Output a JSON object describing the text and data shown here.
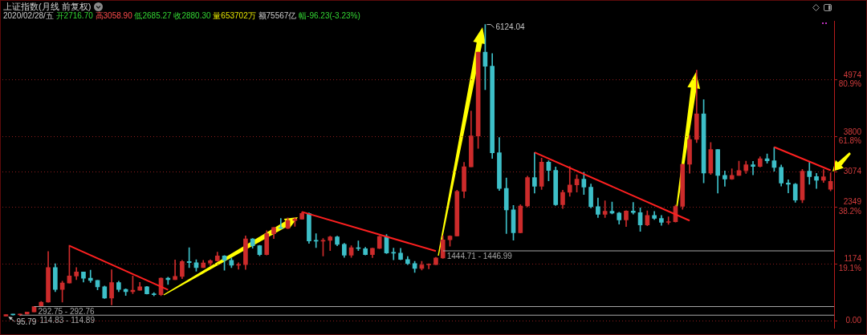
{
  "chart_data": {
    "type": "candlestick",
    "title": "上证指数(月线 前复权)",
    "subtitle": "2020/02/28/五 开2716.70 高3058.90 低2685.27 收2880.30 量653702万 额75567亿 幅-96.23(-3.23%)",
    "categories": [
      null,
      null,
      null,
      null,
      null,
      null,
      null,
      null,
      null,
      null,
      null,
      null,
      null,
      null,
      null,
      null,
      null,
      null,
      null,
      null,
      null,
      null,
      null,
      null,
      null,
      null,
      null,
      null,
      null,
      null,
      null,
      null,
      null,
      null,
      null,
      null,
      null,
      null,
      null,
      null,
      null,
      null,
      null,
      null,
      null,
      null,
      null,
      null,
      null,
      null,
      null,
      null,
      null,
      null,
      null,
      null,
      null,
      null,
      null,
      null,
      null,
      null,
      null,
      null,
      null,
      null,
      null,
      null,
      null,
      null,
      null,
      null,
      null,
      null,
      null,
      null,
      null,
      null,
      null,
      null,
      null,
      null,
      null,
      null,
      null,
      null,
      null,
      null,
      null,
      null,
      null,
      null,
      null,
      null,
      null,
      null,
      null,
      null,
      null,
      null,
      null,
      null,
      null,
      null,
      null,
      null,
      null,
      null,
      null,
      null,
      null,
      null,
      null,
      null,
      null,
      null,
      null,
      null
    ],
    "ohlc": [
      [
        96,
        128,
        95.79,
        128
      ],
      [
        128,
        135,
        118,
        120
      ],
      [
        120,
        138,
        105,
        138
      ],
      [
        138,
        181,
        138,
        181
      ],
      [
        181,
        293,
        181,
        293
      ],
      [
        294,
        400,
        294,
        385
      ],
      [
        385,
        1429,
        380,
        1100
      ],
      [
        1100,
        1180,
        600,
        645
      ],
      [
        645,
        817,
        387,
        780
      ],
      [
        780,
        1559,
        780,
        926
      ],
      [
        926,
        1100,
        850,
        1008
      ],
      [
        1008,
        1010,
        800,
        880
      ],
      [
        880,
        1044,
        790,
        834
      ],
      [
        834,
        835,
        640,
        700
      ],
      [
        700,
        720,
        460,
        467
      ],
      [
        467,
        1053,
        326,
        790
      ],
      [
        790,
        820,
        600,
        648
      ],
      [
        648,
        660,
        524,
        600
      ],
      [
        600,
        926,
        560,
        630
      ],
      [
        630,
        793,
        630,
        700
      ],
      [
        700,
        710,
        550,
        555
      ],
      [
        555,
        580,
        513,
        540
      ],
      [
        540,
        890,
        520,
        880
      ],
      [
        880,
        900,
        750,
        850
      ],
      [
        850,
        1259,
        850,
        917
      ],
      [
        917,
        1250,
        870,
        1225
      ],
      [
        1225,
        1510,
        1100,
        1200
      ],
      [
        1200,
        1260,
        1025,
        1100
      ],
      [
        1100,
        1250,
        1100,
        1194
      ],
      [
        1194,
        1260,
        1140,
        1240
      ],
      [
        1240,
        1420,
        1230,
        1340
      ],
      [
        1340,
        1350,
        1043,
        1250
      ],
      [
        1250,
        1300,
        1100,
        1147
      ],
      [
        1147,
        1200,
        1065,
        1160
      ],
      [
        1160,
        1756,
        1060,
        1690
      ],
      [
        1690,
        1700,
        1500,
        1550
      ],
      [
        1550,
        1560,
        1341,
        1367
      ],
      [
        1367,
        1860,
        1361,
        1800
      ],
      [
        1800,
        1930,
        1700,
        1928
      ],
      [
        1928,
        2115,
        1900,
        1910
      ],
      [
        1910,
        2125,
        1900,
        2073
      ],
      [
        2073,
        2130,
        1950,
        2100
      ],
      [
        2100,
        2245,
        2100,
        2218
      ],
      [
        2218,
        2230,
        1600,
        1650
      ],
      [
        1650,
        1800,
        1514,
        1646
      ],
      [
        1646,
        1700,
        1339,
        1660
      ],
      [
        1660,
        1748,
        1450,
        1732
      ],
      [
        1732,
        1748,
        1550,
        1580
      ],
      [
        1580,
        1600,
        1311,
        1357
      ],
      [
        1357,
        1550,
        1311,
        1510
      ],
      [
        1510,
        1649,
        1450,
        1490
      ],
      [
        1490,
        1520,
        1360,
        1367
      ],
      [
        1367,
        1500,
        1307,
        1497
      ],
      [
        1497,
        1750,
        1490,
        1740
      ],
      [
        1740,
        1783,
        1390,
        1400
      ],
      [
        1400,
        1500,
        1259,
        1396
      ],
      [
        1396,
        1497,
        1260,
        1266
      ],
      [
        1266,
        1328,
        1160,
        1181
      ],
      [
        1181,
        1230,
        998,
        1080
      ],
      [
        1080,
        1230,
        1050,
        1155
      ],
      [
        1155,
        1180,
        1074,
        1161
      ],
      [
        1161,
        1310,
        1160,
        1299
      ],
      [
        1299,
        1757,
        1290,
        1672
      ],
      [
        1672,
        1758,
        1541,
        1752
      ],
      [
        1752,
        2698,
        1750,
        2675
      ],
      [
        2675,
        3274,
        2541,
        3183
      ],
      [
        3183,
        4335,
        3183,
        3820
      ],
      [
        3820,
        5552,
        3563,
        5552
      ],
      [
        5552,
        6124.04,
        4778,
        5261
      ],
      [
        5261,
        5522,
        3357,
        3472
      ],
      [
        3472,
        3786,
        2693,
        2736
      ],
      [
        2736,
        2952,
        1802,
        2293
      ],
      [
        2293,
        2382,
        1665,
        1820
      ],
      [
        1820,
        2402,
        1814,
        2373
      ],
      [
        2373,
        2990,
        2353,
        2959
      ],
      [
        2959,
        3478,
        2639,
        2779
      ],
      [
        2779,
        3361,
        2712,
        3277
      ],
      [
        3277,
        3306,
        2890,
        3109
      ],
      [
        3109,
        3181,
        2382,
        2398
      ],
      [
        2398,
        2700,
        2319,
        2655
      ],
      [
        2655,
        3186,
        2573,
        2808
      ],
      [
        2808,
        3017,
        2661,
        2928
      ],
      [
        2928,
        3067,
        2610,
        2762
      ],
      [
        2762,
        2827,
        2331,
        2359
      ],
      [
        2359,
        2536,
        2134,
        2199
      ],
      [
        2199,
        2478,
        2132,
        2262
      ],
      [
        2262,
        2453,
        2210,
        2225
      ],
      [
        2225,
        2244,
        1999,
        2086
      ],
      [
        2086,
        2276,
        1949,
        2269
      ],
      [
        2269,
        2444,
        2205,
        2236
      ],
      [
        2236,
        2334,
        1849,
        1979
      ],
      [
        1979,
        2270,
        1963,
        2175
      ],
      [
        2175,
        2259,
        2093,
        2116
      ],
      [
        2116,
        2177,
        1974,
        2033
      ],
      [
        2033,
        2146,
        1991,
        2048
      ],
      [
        2048,
        2392,
        2040,
        2364
      ],
      [
        2364,
        3239,
        2304,
        3234
      ],
      [
        3234,
        3835,
        3049,
        3748
      ],
      [
        3748,
        5178,
        3684,
        4277
      ],
      [
        4277,
        4572,
        2850,
        3053
      ],
      [
        3053,
        3684,
        3023,
        3539
      ],
      [
        3539,
        3539,
        2638,
        3003
      ],
      [
        3003,
        3097,
        2781,
        2930
      ],
      [
        2930,
        3140,
        2920,
        3005
      ],
      [
        3005,
        3301,
        3003,
        3104
      ],
      [
        3104,
        3301,
        3044,
        3223
      ],
      [
        3223,
        3295,
        3016,
        3192
      ],
      [
        3192,
        3391,
        3178,
        3349
      ],
      [
        3349,
        3450,
        3255,
        3307
      ],
      [
        3307,
        3587,
        3091,
        3169
      ],
      [
        3169,
        3220,
        2782,
        2847
      ],
      [
        2847,
        2915,
        2644,
        2821
      ],
      [
        2821,
        2838,
        2449,
        2494
      ],
      [
        2497,
        3129,
        2440,
        3091
      ],
      [
        3091,
        3288,
        2822,
        2979
      ],
      [
        2979,
        3048,
        2733,
        2905
      ],
      [
        2905,
        3127,
        2857,
        2977
      ],
      [
        2716.7,
        3058.9,
        2685.27,
        2880.3
      ]
    ],
    "series": [
      {
        "type": "line",
        "color": "#ff2020",
        "values": [
          null,
          null,
          null,
          null,
          null,
          null,
          null,
          null,
          null,
          1550,
          null,
          null,
          null,
          null,
          null,
          null,
          null,
          null,
          null,
          null,
          null,
          null,
          null,
          640,
          null,
          null,
          null,
          null,
          null,
          null,
          null,
          null,
          null,
          null,
          null,
          null,
          null,
          null,
          null,
          null,
          null,
          null,
          null,
          null,
          null,
          null,
          null,
          null,
          null,
          null,
          null,
          null,
          null,
          null,
          null,
          null,
          null,
          null,
          null,
          null,
          null,
          null,
          null,
          null,
          null,
          null,
          null,
          null,
          null,
          null,
          null,
          null,
          null,
          null,
          null,
          null,
          null,
          null,
          null,
          null,
          null,
          null,
          null,
          null,
          null,
          null,
          null,
          null,
          null,
          null,
          null,
          null,
          null,
          null,
          null,
          null,
          null,
          null,
          null,
          null,
          null,
          null,
          null,
          null,
          null,
          null,
          null,
          null,
          null,
          null,
          null,
          null,
          null,
          null,
          null,
          null,
          null,
          null
        ]
      },
      {
        "type": "line",
        "color": "#ff2020",
        "values": [
          null,
          null,
          null,
          null,
          null,
          null,
          null,
          null,
          null,
          null,
          null,
          null,
          null,
          null,
          null,
          null,
          null,
          null,
          null,
          null,
          null,
          null,
          null,
          null,
          null,
          null,
          null,
          null,
          null,
          null,
          null,
          null,
          null,
          null,
          null,
          null,
          null,
          null,
          null,
          null,
          null,
          null,
          2250,
          null,
          null,
          null,
          null,
          null,
          null,
          null,
          null,
          null,
          null,
          null,
          null,
          null,
          null,
          null,
          null,
          null,
          null,
          1440,
          null,
          null,
          null,
          null,
          null,
          null,
          null,
          null,
          null,
          null,
          null,
          null,
          null,
          null,
          null,
          null,
          null,
          null,
          null,
          null,
          null,
          null,
          null,
          null,
          null,
          null,
          null,
          null,
          null,
          null,
          null,
          null,
          null,
          null,
          null,
          null,
          null,
          null,
          null,
          null,
          null,
          null,
          null,
          null,
          null,
          null,
          null,
          null,
          null,
          null,
          null,
          null,
          null,
          null,
          null,
          null
        ]
      },
      {
        "type": "line",
        "color": "#ff2020",
        "values": [
          null,
          null,
          null,
          null,
          null,
          null,
          null,
          null,
          null,
          null,
          null,
          null,
          null,
          null,
          null,
          null,
          null,
          null,
          null,
          null,
          null,
          null,
          null,
          null,
          null,
          null,
          null,
          null,
          null,
          null,
          null,
          null,
          null,
          null,
          null,
          null,
          null,
          null,
          null,
          null,
          null,
          null,
          null,
          null,
          null,
          null,
          null,
          null,
          null,
          null,
          null,
          null,
          null,
          null,
          null,
          null,
          null,
          null,
          null,
          null,
          null,
          null,
          null,
          null,
          null,
          null,
          null,
          null,
          null,
          null,
          null,
          null,
          null,
          null,
          null,
          3480,
          null,
          null,
          null,
          null,
          null,
          null,
          null,
          null,
          null,
          null,
          null,
          null,
          null,
          null,
          null,
          null,
          null,
          null,
          null,
          null,
          null,
          2070,
          null,
          null,
          null,
          null,
          null,
          null,
          null,
          null,
          null,
          null,
          null,
          null,
          null,
          null,
          null,
          null,
          null,
          null,
          null,
          null
        ]
      },
      {
        "type": "line",
        "color": "#ff2020",
        "values": [
          null,
          null,
          null,
          null,
          null,
          null,
          null,
          null,
          null,
          null,
          null,
          null,
          null,
          null,
          null,
          null,
          null,
          null,
          null,
          null,
          null,
          null,
          null,
          null,
          null,
          null,
          null,
          null,
          null,
          null,
          null,
          null,
          null,
          null,
          null,
          null,
          null,
          null,
          null,
          null,
          null,
          null,
          null,
          null,
          null,
          null,
          null,
          null,
          null,
          null,
          null,
          null,
          null,
          null,
          null,
          null,
          null,
          null,
          null,
          null,
          null,
          null,
          null,
          null,
          null,
          null,
          null,
          null,
          null,
          null,
          null,
          null,
          null,
          null,
          null,
          null,
          null,
          null,
          null,
          null,
          null,
          null,
          null,
          null,
          null,
          null,
          null,
          null,
          null,
          null,
          null,
          null,
          null,
          null,
          null,
          null,
          null,
          null,
          null,
          null,
          null,
          null,
          null,
          null,
          null,
          null,
          null,
          null,
          null,
          3590,
          null,
          null,
          null,
          null,
          null,
          null,
          null,
          3110
        ]
      }
    ],
    "ylim": [
      -150,
      6200
    ],
    "yticks": [
      {
        "value": 0,
        "label": "0.00"
      },
      {
        "value": 1174,
        "label": "1174\n19.1%"
      },
      {
        "value": 2349,
        "label": "2349\n38.2%"
      },
      {
        "value": 3074,
        "label": "3074"
      },
      {
        "value": 3800,
        "label": "3800\n61.8%"
      },
      {
        "value": 4974,
        "label": "4974\n80.9%"
      }
    ],
    "grid": "y",
    "tick_labels": "y",
    "ref_lines": [
      {
        "axis": "y",
        "value": 1444.71,
        "label": "1444.71 - 1446.99",
        "color": "#a6a6a6"
      },
      {
        "axis": "y",
        "value": 292.75,
        "label": "292.75 - 292.76",
        "color": "#a6a6a6"
      },
      {
        "axis": "y",
        "value": 114.83,
        "label": "114.83 - 114.89",
        "color": "#a6a6a6"
      }
    ],
    "annotations": [
      "6124.04",
      "95.79"
    ]
  }
}
